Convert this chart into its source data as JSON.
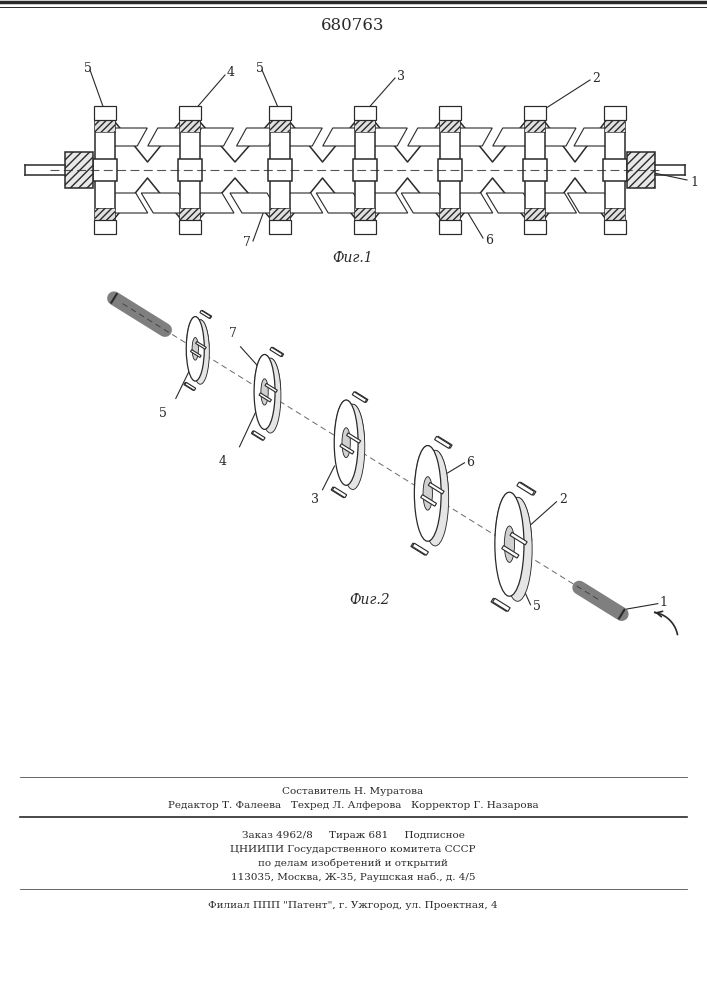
{
  "patent_number": "680763",
  "fig1_label": "Фиг.1",
  "fig2_label": "Фиг.2",
  "footer_line1": "Составитель Н. Муратова",
  "footer_line2": "Редактор Т. Фалеева   Техред Л. Алферова   Корректор Г. Назарова",
  "footer_line3": "Заказ 4962/8     Тираж 681     Подписное",
  "footer_line4": "ЦНИИПИ Государственного комитета СССР",
  "footer_line5": "по делам изобретений и открытий",
  "footer_line6": "113035, Москва, Ж-35, Раушская наб., д. 4/5",
  "footer_line7": "Филиал ППП \"Патент\", г. Ужгород, ул. Проектная, 4",
  "bg_color": "#ffffff",
  "line_color": "#2a2a2a"
}
